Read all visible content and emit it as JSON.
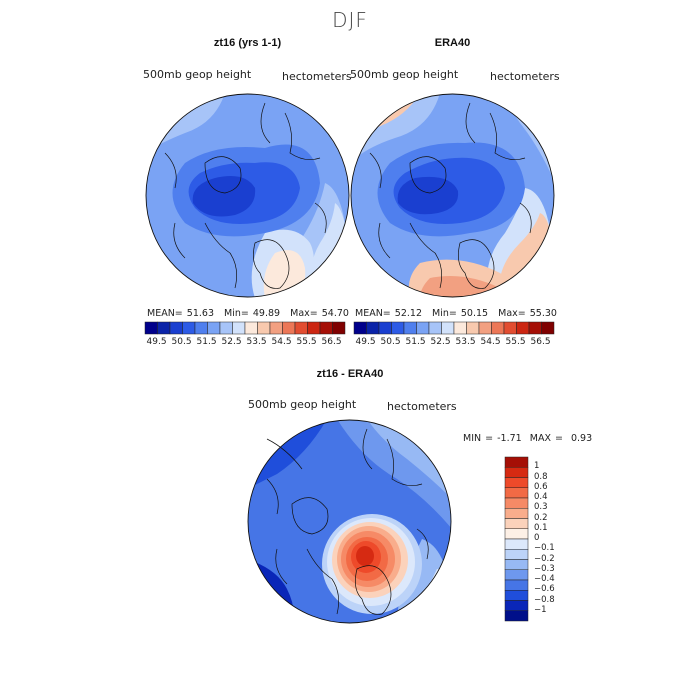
{
  "season": "DJF",
  "panels": [
    {
      "title": "zt16 (yrs 1-1)",
      "left_label": "500mb geop height",
      "right_label": "hectometers",
      "stats": {
        "mean_label": "MEAN=",
        "mean": "51.63",
        "min_label": "Min=",
        "min": "49.89",
        "max_label": "Max=",
        "max": "54.70"
      }
    },
    {
      "title": "ERA40",
      "left_label": "500mb geop height",
      "right_label": "hectometers",
      "stats": {
        "mean_label": "MEAN=",
        "mean": "52.12",
        "min_label": "Min=",
        "min": "50.15",
        "max_label": "Max=",
        "max": "55.30"
      }
    }
  ],
  "colorbar": {
    "ticks": [
      "49.5",
      "50.5",
      "51.5",
      "52.5",
      "53.5",
      "54.5",
      "55.5",
      "56.5"
    ],
    "colors": [
      "#00008b",
      "#0a23a8",
      "#1a3fd0",
      "#2d5be6",
      "#4f7fee",
      "#7aa3f4",
      "#a7c4f8",
      "#d2e2fb",
      "#fce9dc",
      "#f8c9ae",
      "#f2a081",
      "#ec7757",
      "#e24d31",
      "#cc2612",
      "#a50f06",
      "#7f0000"
    ]
  },
  "difference": {
    "title": "zt16 - ERA40",
    "left_label": "500mb geop height",
    "right_label": "hectometers",
    "stats": {
      "min_label": "MIN =",
      "min": "-1.71",
      "max_label": "MAX =",
      "max": "0.93"
    },
    "legend_ticks": [
      "1",
      "0.8",
      "0.6",
      "0.4",
      "0.3",
      "0.2",
      "0.1",
      "0",
      "−0.1",
      "−0.2",
      "−0.3",
      "−0.4",
      "−0.6",
      "−0.8",
      "−1"
    ],
    "legend_colors": [
      "#a50f06",
      "#d62a12",
      "#ee4a2a",
      "#f26a45",
      "#f68a66",
      "#f9ad8c",
      "#fbd2bb",
      "#fdf0e6",
      "#dce8fb",
      "#bcd3f8",
      "#97b9f4",
      "#6e98ee",
      "#4675e6",
      "#1f4edb",
      "#0a26b8",
      "#000f8a"
    ]
  }
}
